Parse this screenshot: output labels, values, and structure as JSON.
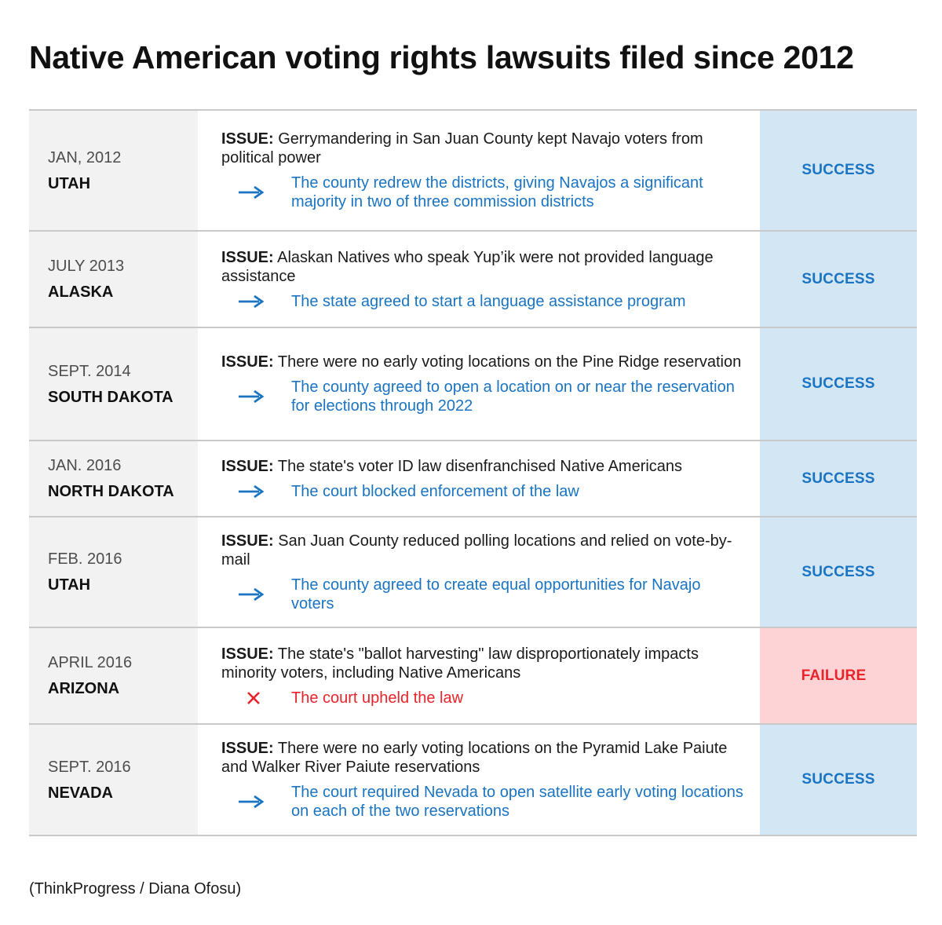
{
  "title": "Native American voting rights lawsuits filed since 2012",
  "issue_prefix": "ISSUE:",
  "rows": [
    {
      "date": "JAN, 2012",
      "state": "UTAH",
      "issue": "Gerrymandering in San Juan County kept Navajo voters from political power",
      "outcome": "The county redrew the districts, giving Navajos a significant majority in two of three commission districts",
      "result": "SUCCESS",
      "marker": "arrow-right-icon"
    },
    {
      "date": "JULY 2013",
      "state": "ALASKA",
      "issue": "Alaskan Natives who speak Yup’ik were not provided language assistance",
      "outcome": "The state agreed to start a language assistance program",
      "result": "SUCCESS",
      "marker": "arrow-right-icon"
    },
    {
      "date": "SEPT. 2014",
      "state": "SOUTH DAKOTA",
      "issue": "There were no early voting locations on the Pine Ridge reservation",
      "outcome": "The county agreed to open a location on or near the reservation for elections through 2022",
      "result": "SUCCESS",
      "marker": "arrow-right-icon"
    },
    {
      "date": "JAN. 2016",
      "state": "NORTH DAKOTA",
      "issue": "The state's voter ID law disenfranchised Native Americans",
      "outcome": "The court blocked enforcement of the law",
      "result": "SUCCESS",
      "marker": "arrow-right-icon"
    },
    {
      "date": "FEB. 2016",
      "state": "UTAH",
      "issue": "San Juan County reduced polling locations and relied on vote-by-mail",
      "outcome": "The county agreed to create equal opportunities for Navajo voters",
      "result": "SUCCESS",
      "marker": "arrow-right-icon"
    },
    {
      "date": "APRIL 2016",
      "state": "ARIZONA",
      "issue": "The state's \"ballot harvesting\" law disproportionately impacts minority voters, including Native Americans",
      "outcome": "The court upheld the law",
      "result": "FAILURE",
      "marker": "x-icon"
    },
    {
      "date": "SEPT. 2016",
      "state": "NEVADA",
      "issue": "There were no early voting locations on the Pyramid Lake Paiute and Walker River Paiute reservations",
      "outcome": "The court required Nevada to open satellite early voting locations on each of the two reservations",
      "result": "SUCCESS",
      "marker": "arrow-right-icon"
    }
  ],
  "credit": "(ThinkProgress / Diana Ofosu)",
  "colors": {
    "success_text": "#1a74c2",
    "success_bg": "#d3e6f4",
    "failure_text": "#e8242a",
    "failure_bg": "#fdd3d5",
    "date_bg": "#f2f2f2"
  }
}
